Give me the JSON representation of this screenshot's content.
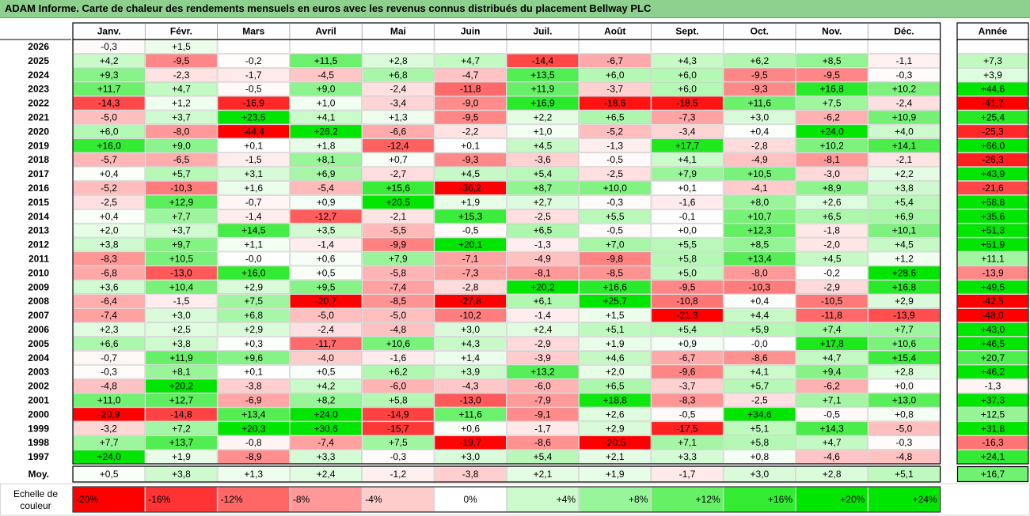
{
  "title": "ADAM Informe. Carte de chaleur des rendements mensuels en euros avec les revenus connus distribués du placement Bellway PLC",
  "chart_data": {
    "type": "heatmap",
    "columns": [
      "Janv.",
      "Févr.",
      "Mars",
      "Avril",
      "Mai",
      "Juin",
      "Juil.",
      "Août",
      "Sept.",
      "Oct.",
      "Nov.",
      "Déc."
    ],
    "year_column": "Année",
    "rows": [
      {
        "year": "2026",
        "values": [
          "-0,3",
          "+1,5",
          "",
          "",
          "",
          "",
          "",
          "",
          "",
          "",
          "",
          ""
        ],
        "annual": ""
      },
      {
        "year": "2025",
        "values": [
          "+4,2",
          "-9,5",
          "-0,2",
          "+11,5",
          "+2,8",
          "+4,7",
          "-14,4",
          "-6,7",
          "+4,3",
          "+6,2",
          "+8,5",
          "-1,1"
        ],
        "annual": "+7,3"
      },
      {
        "year": "2024",
        "values": [
          "+9,3",
          "-2,3",
          "-1,7",
          "-4,5",
          "+6,8",
          "-4,7",
          "+13,5",
          "+6,0",
          "+6,0",
          "-9,5",
          "-9,5",
          "-0,3"
        ],
        "annual": "+3,9"
      },
      {
        "year": "2023",
        "values": [
          "+11,7",
          "+4,7",
          "-0,5",
          "+9,0",
          "-2,4",
          "-11,8",
          "+11,9",
          "-3,7",
          "+6,0",
          "-9,3",
          "+16,8",
          "+10,2"
        ],
        "annual": "+44,6"
      },
      {
        "year": "2022",
        "values": [
          "-14,3",
          "+1,2",
          "-16,9",
          "+1,0",
          "-3,4",
          "-9,0",
          "+16,9",
          "-18,6",
          "-18,5",
          "+11,6",
          "+7,5",
          "-2,4"
        ],
        "annual": "-41,7"
      },
      {
        "year": "2021",
        "values": [
          "-5,0",
          "+3,7",
          "+23,5",
          "+4,1",
          "+1,3",
          "-9,5",
          "+2,2",
          "+6,5",
          "-7,3",
          "+3,0",
          "-6,2",
          "+10,9"
        ],
        "annual": "+25,4"
      },
      {
        "year": "2020",
        "values": [
          "+6,0",
          "-8,0",
          "-44,4",
          "+26,2",
          "-6,6",
          "-2,2",
          "+1,0",
          "-5,2",
          "-3,4",
          "+0,4",
          "+24,0",
          "+4,0"
        ],
        "annual": "-25,3"
      },
      {
        "year": "2019",
        "values": [
          "+16,0",
          "+9,0",
          "+0,1",
          "+1,8",
          "-12,4",
          "+0,1",
          "+4,5",
          "-1,3",
          "+17,7",
          "-2,8",
          "+10,2",
          "+14,1"
        ],
        "annual": "+66,0"
      },
      {
        "year": "2018",
        "values": [
          "-5,7",
          "-6,5",
          "-1,5",
          "+8,1",
          "+0,7",
          "-9,3",
          "-3,6",
          "-0,5",
          "+4,1",
          "-4,9",
          "-8,1",
          "-2,1"
        ],
        "annual": "-26,3"
      },
      {
        "year": "2017",
        "values": [
          "+0,4",
          "+5,7",
          "+3,1",
          "+6,9",
          "-2,7",
          "+4,5",
          "+5,4",
          "-2,5",
          "+7,9",
          "+10,5",
          "-3,0",
          "+2,2"
        ],
        "annual": "+43,9"
      },
      {
        "year": "2016",
        "values": [
          "-5,2",
          "-10,3",
          "+1,6",
          "-5,4",
          "+15,6",
          "-36,2",
          "+8,7",
          "+10,0",
          "+0,1",
          "-4,1",
          "+8,9",
          "+3,8"
        ],
        "annual": "-21,6"
      },
      {
        "year": "2015",
        "values": [
          "-2,5",
          "+12,9",
          "-0,7",
          "+0,9",
          "+20,5",
          "+1,9",
          "+2,7",
          "-0,3",
          "-1,6",
          "+8,0",
          "+2,6",
          "+5,4"
        ],
        "annual": "+58,8"
      },
      {
        "year": "2014",
        "values": [
          "+0,4",
          "+7,7",
          "-1,4",
          "-12,7",
          "-2,1",
          "+15,3",
          "-2,5",
          "+5,5",
          "-0,1",
          "+10,7",
          "+6,5",
          "+6,9"
        ],
        "annual": "+35,6"
      },
      {
        "year": "2013",
        "values": [
          "+2,0",
          "+3,7",
          "+14,5",
          "+3,5",
          "-5,5",
          "-0,5",
          "+6,5",
          "-0,5",
          "+0,0",
          "+12,3",
          "-1,8",
          "+10,1"
        ],
        "annual": "+51,3"
      },
      {
        "year": "2012",
        "values": [
          "+3,8",
          "+9,7",
          "+1,1",
          "-1,4",
          "-9,9",
          "+20,1",
          "-1,3",
          "+7,0",
          "+5,5",
          "+8,5",
          "-2,0",
          "+4,5"
        ],
        "annual": "+51,9"
      },
      {
        "year": "2011",
        "values": [
          "-8,3",
          "+10,5",
          "-0,0",
          "+0,6",
          "+7,9",
          "-7,1",
          "-4,9",
          "-9,8",
          "+5,8",
          "+13,4",
          "+4,5",
          "+1,2"
        ],
        "annual": "+11,1"
      },
      {
        "year": "2010",
        "values": [
          "-6,8",
          "-13,0",
          "+16,0",
          "+0,5",
          "-5,8",
          "-7,3",
          "-8,1",
          "-8,5",
          "+5,0",
          "-8,0",
          "-0,2",
          "+28,6"
        ],
        "annual": "-13,9"
      },
      {
        "year": "2009",
        "values": [
          "+3,6",
          "+10,4",
          "+2,9",
          "+9,5",
          "-7,4",
          "-2,8",
          "+20,2",
          "+16,6",
          "-9,5",
          "-10,3",
          "-2,9",
          "+16,8"
        ],
        "annual": "+49,5"
      },
      {
        "year": "2008",
        "values": [
          "-6,4",
          "-1,5",
          "+7,5",
          "-20,7",
          "-8,5",
          "-27,8",
          "+6,1",
          "+25,7",
          "-10,8",
          "+0,4",
          "-10,5",
          "+2,9"
        ],
        "annual": "-42,5"
      },
      {
        "year": "2007",
        "values": [
          "-7,4",
          "+3,0",
          "+6,8",
          "-5,0",
          "-5,0",
          "-10,2",
          "-1,4",
          "+1,5",
          "-21,3",
          "+4,4",
          "-11,8",
          "-13,9"
        ],
        "annual": "-48,0"
      },
      {
        "year": "2006",
        "values": [
          "+2,3",
          "+2,5",
          "+2,9",
          "-2,4",
          "-4,8",
          "+3,0",
          "+2,4",
          "+5,1",
          "+5,4",
          "+5,9",
          "+7,4",
          "+7,7"
        ],
        "annual": "+43,0"
      },
      {
        "year": "2005",
        "values": [
          "+6,6",
          "+3,8",
          "+0,3",
          "-11,7",
          "+10,6",
          "+4,3",
          "-2,9",
          "+1,9",
          "+0,9",
          "-0,0",
          "+17,8",
          "+10,6"
        ],
        "annual": "+46,5"
      },
      {
        "year": "2004",
        "values": [
          "-0,7",
          "+11,9",
          "+9,6",
          "-4,0",
          "-1,6",
          "+1,4",
          "-3,9",
          "+4,6",
          "-6,7",
          "-8,6",
          "+4,7",
          "+15,4"
        ],
        "annual": "+20,7"
      },
      {
        "year": "2003",
        "values": [
          "-0,3",
          "+8,1",
          "+0,1",
          "+0,5",
          "+6,2",
          "+3,9",
          "+13,2",
          "+2,0",
          "-9,6",
          "+4,1",
          "+9,4",
          "+2,8"
        ],
        "annual": "+46,2"
      },
      {
        "year": "2002",
        "values": [
          "-4,8",
          "+20,2",
          "-3,8",
          "+4,2",
          "-6,0",
          "-4,3",
          "-6,0",
          "+6,5",
          "-3,7",
          "+5,7",
          "-6,2",
          "+0,0"
        ],
        "annual": "-1,3"
      },
      {
        "year": "2001",
        "values": [
          "+11,0",
          "+12,7",
          "-6,9",
          "+8,2",
          "+5,8",
          "-13,0",
          "-7,9",
          "+18,8",
          "-8,3",
          "-2,5",
          "+7,1",
          "+13,0"
        ],
        "annual": "+37,3"
      },
      {
        "year": "2000",
        "values": [
          "-20,9",
          "-14,8",
          "+13,4",
          "+24,0",
          "-14,9",
          "+11,6",
          "-9,1",
          "+2,6",
          "-0,5",
          "+34,6",
          "-0,5",
          "+0,8"
        ],
        "annual": "+12,5"
      },
      {
        "year": "1999",
        "values": [
          "-3,2",
          "+7,2",
          "+20,3",
          "+30,6",
          "-15,7",
          "+0,6",
          "-1,7",
          "+2,9",
          "-17,5",
          "+5,1",
          "+14,3",
          "-5,0"
        ],
        "annual": "+31,8"
      },
      {
        "year": "1998",
        "values": [
          "+7,7",
          "+13,7",
          "-0,8",
          "-7,4",
          "+7,5",
          "-19,7",
          "-8,6",
          "-20,5",
          "+7,1",
          "+5,8",
          "+4,7",
          "-0,3"
        ],
        "annual": "-16,3"
      },
      {
        "year": "1997",
        "values": [
          "+24,0",
          "+1,9",
          "-8,9",
          "+3,3",
          "-0,3",
          "+3,0",
          "+5,4",
          "+2,1",
          "+3,3",
          "+0,8",
          "-4,6",
          "-4,8"
        ],
        "annual": "+24,1"
      }
    ],
    "average": {
      "label": "Moy.",
      "values": [
        "+0,5",
        "+3,8",
        "+1,3",
        "+2,4",
        "-1,2",
        "-3,8",
        "+2,1",
        "+1,9",
        "-1,7",
        "+3,0",
        "+2,8",
        "+5,1"
      ],
      "annual": "+16,7"
    },
    "color_scale": {
      "label_line1": "Echelle de",
      "label_line2": "couleur",
      "steps": [
        {
          "label": "-20%",
          "value": -20
        },
        {
          "label": "-16%",
          "value": -16
        },
        {
          "label": "-12%",
          "value": -12
        },
        {
          "label": "-8%",
          "value": -8
        },
        {
          "label": "-4%",
          "value": -4
        },
        {
          "label": "0%",
          "value": 0
        },
        {
          "label": "+4%",
          "value": 4
        },
        {
          "label": "+8%",
          "value": 8
        },
        {
          "label": "+12%",
          "value": 12
        },
        {
          "label": "+16%",
          "value": 16
        },
        {
          "label": "+20%",
          "value": 20
        },
        {
          "label": "+24%",
          "value": 24
        }
      ]
    },
    "colors": {
      "negative_max": "#ff0000",
      "zero": "#ffffff",
      "positive_max": "#00e600",
      "title_bar": "#8ed08e"
    }
  }
}
